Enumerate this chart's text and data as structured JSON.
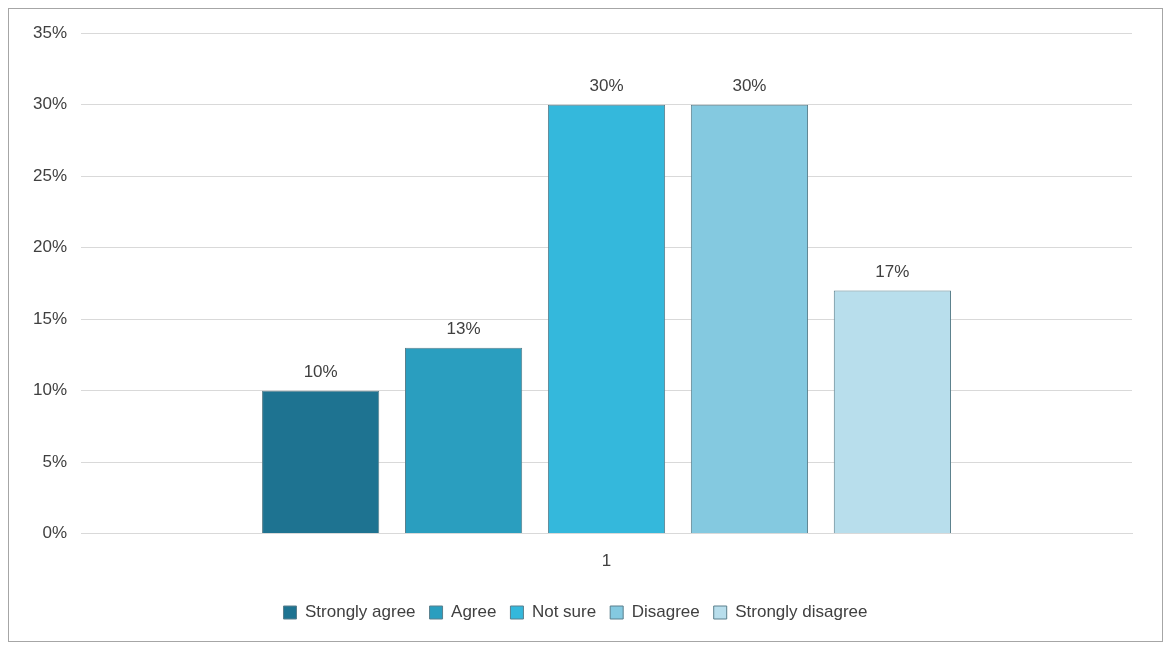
{
  "chart_data": {
    "type": "bar",
    "categories": [
      "1"
    ],
    "series": [
      {
        "name": "Strongly agree",
        "color": "#1e7391",
        "values": [
          10
        ],
        "value_labels": [
          "10%"
        ]
      },
      {
        "name": "Agree",
        "color": "#2a9ebf",
        "values": [
          13
        ],
        "value_labels": [
          "13%"
        ]
      },
      {
        "name": "Not sure",
        "color": "#34b8dc",
        "values": [
          30
        ],
        "value_labels": [
          "30%"
        ]
      },
      {
        "name": "Disagree",
        "color": "#84c9e0",
        "values": [
          30
        ],
        "value_labels": [
          "30%"
        ]
      },
      {
        "name": "Strongly disagree",
        "color": "#b8deec",
        "values": [
          17
        ],
        "value_labels": [
          "17%"
        ]
      }
    ],
    "ylim": [
      0,
      35
    ],
    "yticks": [
      {
        "value": 0,
        "label": "0%"
      },
      {
        "value": 5,
        "label": "5%"
      },
      {
        "value": 10,
        "label": "10%"
      },
      {
        "value": 15,
        "label": "15%"
      },
      {
        "value": 20,
        "label": "20%"
      },
      {
        "value": 25,
        "label": "25%"
      },
      {
        "value": 30,
        "label": "30%"
      },
      {
        "value": 35,
        "label": "35%"
      }
    ],
    "grid": "y",
    "legend": "bottom"
  }
}
